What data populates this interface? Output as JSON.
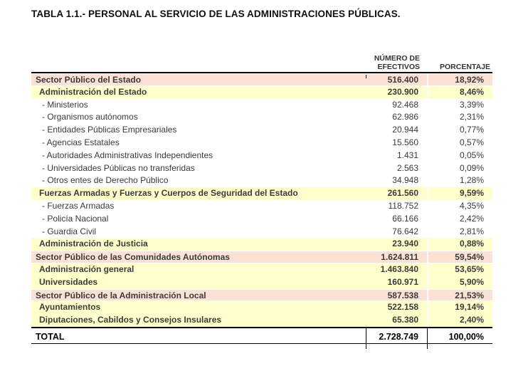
{
  "title": "TABLA 1.1.- PERSONAL AL SERVICIO DE LAS ADMINISTRACIONES PÚBLICAS.",
  "table": {
    "headers": {
      "efectivos_line1": "NÚMERO DE",
      "efectivos_line2": "EFECTIVOS",
      "porcentaje": "PORCENTAJE"
    },
    "rows": [
      {
        "label": "Sector Público del Estado",
        "efectivos": "516.400",
        "porcentaje": "18,92%",
        "level": 1
      },
      {
        "label": "Administración del Estado",
        "efectivos": "230.900",
        "porcentaje": "8,46%",
        "level": 2
      },
      {
        "label": "- Ministerios",
        "efectivos": "92.468",
        "porcentaje": "3,39%",
        "level": 3
      },
      {
        "label": "- Organismos autónomos",
        "efectivos": "62.986",
        "porcentaje": "2,31%",
        "level": 3
      },
      {
        "label": "- Entidades Públicas Empresariales",
        "efectivos": "20.944",
        "porcentaje": "0,77%",
        "level": 3
      },
      {
        "label": "- Agencias Estatales",
        "efectivos": "15.560",
        "porcentaje": "0,57%",
        "level": 3
      },
      {
        "label": "- Autoridades Administrativas Independientes",
        "efectivos": "1.431",
        "porcentaje": "0,05%",
        "level": 3
      },
      {
        "label": "- Universidades Públicas no transferidas",
        "efectivos": "2.563",
        "porcentaje": "0,09%",
        "level": 3
      },
      {
        "label": "- Otros entes de Derecho Público",
        "efectivos": "34.948",
        "porcentaje": "1,28%",
        "level": 3
      },
      {
        "label": "Fuerzas Armadas y Fuerzas y Cuerpos de Seguridad del Estado",
        "efectivos": "261.560",
        "porcentaje": "9,59%",
        "level": 2
      },
      {
        "label": "- Fuerzas Armadas",
        "efectivos": "118.752",
        "porcentaje": "4,35%",
        "level": 3
      },
      {
        "label": "- Policía Nacional",
        "efectivos": "66.166",
        "porcentaje": "2,42%",
        "level": 3
      },
      {
        "label": "- Guardia Civil",
        "efectivos": "76.642",
        "porcentaje": "2,81%",
        "level": 3
      },
      {
        "label": "Administración de Justicia",
        "efectivos": "23.940",
        "porcentaje": "0,88%",
        "level": 2
      },
      {
        "label": "Sector Público de las Comunidades Autónomas",
        "efectivos": "1.624.811",
        "porcentaje": "59,54%",
        "level": 1
      },
      {
        "label": "Administración general",
        "efectivos": "1.463.840",
        "porcentaje": "53,65%",
        "level": 2
      },
      {
        "label": "Universidades",
        "efectivos": "160.971",
        "porcentaje": "5,90%",
        "level": 2
      },
      {
        "label": "Sector Público de la Administración Local",
        "efectivos": "587.538",
        "porcentaje": "21,53%",
        "level": 1
      },
      {
        "label": "Ayuntamientos",
        "efectivos": "522.158",
        "porcentaje": "19,14%",
        "level": 2
      },
      {
        "label": "Diputaciones, Cabildos y Consejos Insulares",
        "efectivos": "65.380",
        "porcentaje": "2,40%",
        "level": 2
      }
    ],
    "total": {
      "label": "TOTAL",
      "efectivos": "2.728.749",
      "porcentaje": "100,00%"
    }
  },
  "colors": {
    "sector_row_bg": "#fbe2d5",
    "subsection_row_bg": "#ffffcc",
    "border_black": "#000000",
    "text": "#3a3a3a"
  }
}
